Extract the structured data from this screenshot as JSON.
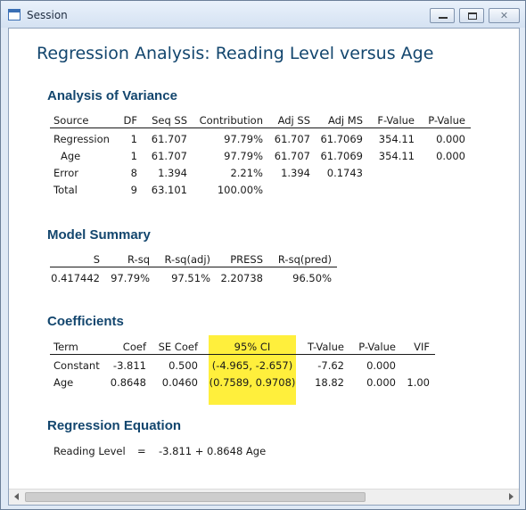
{
  "window": {
    "title": "Session",
    "controls": {
      "minimize": "",
      "maximize": "",
      "close": "✕"
    }
  },
  "report": {
    "title": "Regression Analysis: Reading Level versus Age",
    "anova": {
      "heading": "Analysis of Variance",
      "columns": [
        "Source",
        "DF",
        "Seq SS",
        "Contribution",
        "Adj SS",
        "Adj MS",
        "F-Value",
        "P-Value"
      ],
      "rows": [
        [
          "Regression",
          "1",
          "61.707",
          "97.79%",
          "61.707",
          "61.7069",
          "354.11",
          "0.000"
        ],
        [
          "Age",
          "1",
          "61.707",
          "97.79%",
          "61.707",
          "61.7069",
          "354.11",
          "0.000"
        ],
        [
          "Error",
          "8",
          "1.394",
          "2.21%",
          "1.394",
          "0.1743",
          "",
          ""
        ],
        [
          "Total",
          "9",
          "63.101",
          "100.00%",
          "",
          "",
          "",
          ""
        ]
      ]
    },
    "model_summary": {
      "heading": "Model Summary",
      "columns": [
        "S",
        "R-sq",
        "R-sq(adj)",
        "PRESS",
        "R-sq(pred)"
      ],
      "rows": [
        [
          "0.417442",
          "97.79%",
          "97.51%",
          "2.20738",
          "96.50%"
        ]
      ]
    },
    "coefficients": {
      "heading": "Coefficients",
      "columns": [
        "Term",
        "Coef",
        "SE Coef",
        "95% CI",
        "T-Value",
        "P-Value",
        "VIF"
      ],
      "rows": [
        [
          "Constant",
          "-3.811",
          "0.500",
          "(-4.965, -2.657)",
          "-7.62",
          "0.000",
          ""
        ],
        [
          "Age",
          "0.8648",
          "0.0460",
          "(0.7589, 0.9708)",
          "18.82",
          "0.000",
          "1.00"
        ]
      ],
      "highlight_color": "#ffef3c"
    },
    "equation": {
      "heading": "Regression Equation",
      "lhs": "Reading Level",
      "eq": "=",
      "rhs": "-3.811 + 0.8648 Age"
    }
  },
  "colors": {
    "heading": "#13466e",
    "frame": "#dfe9f5"
  }
}
